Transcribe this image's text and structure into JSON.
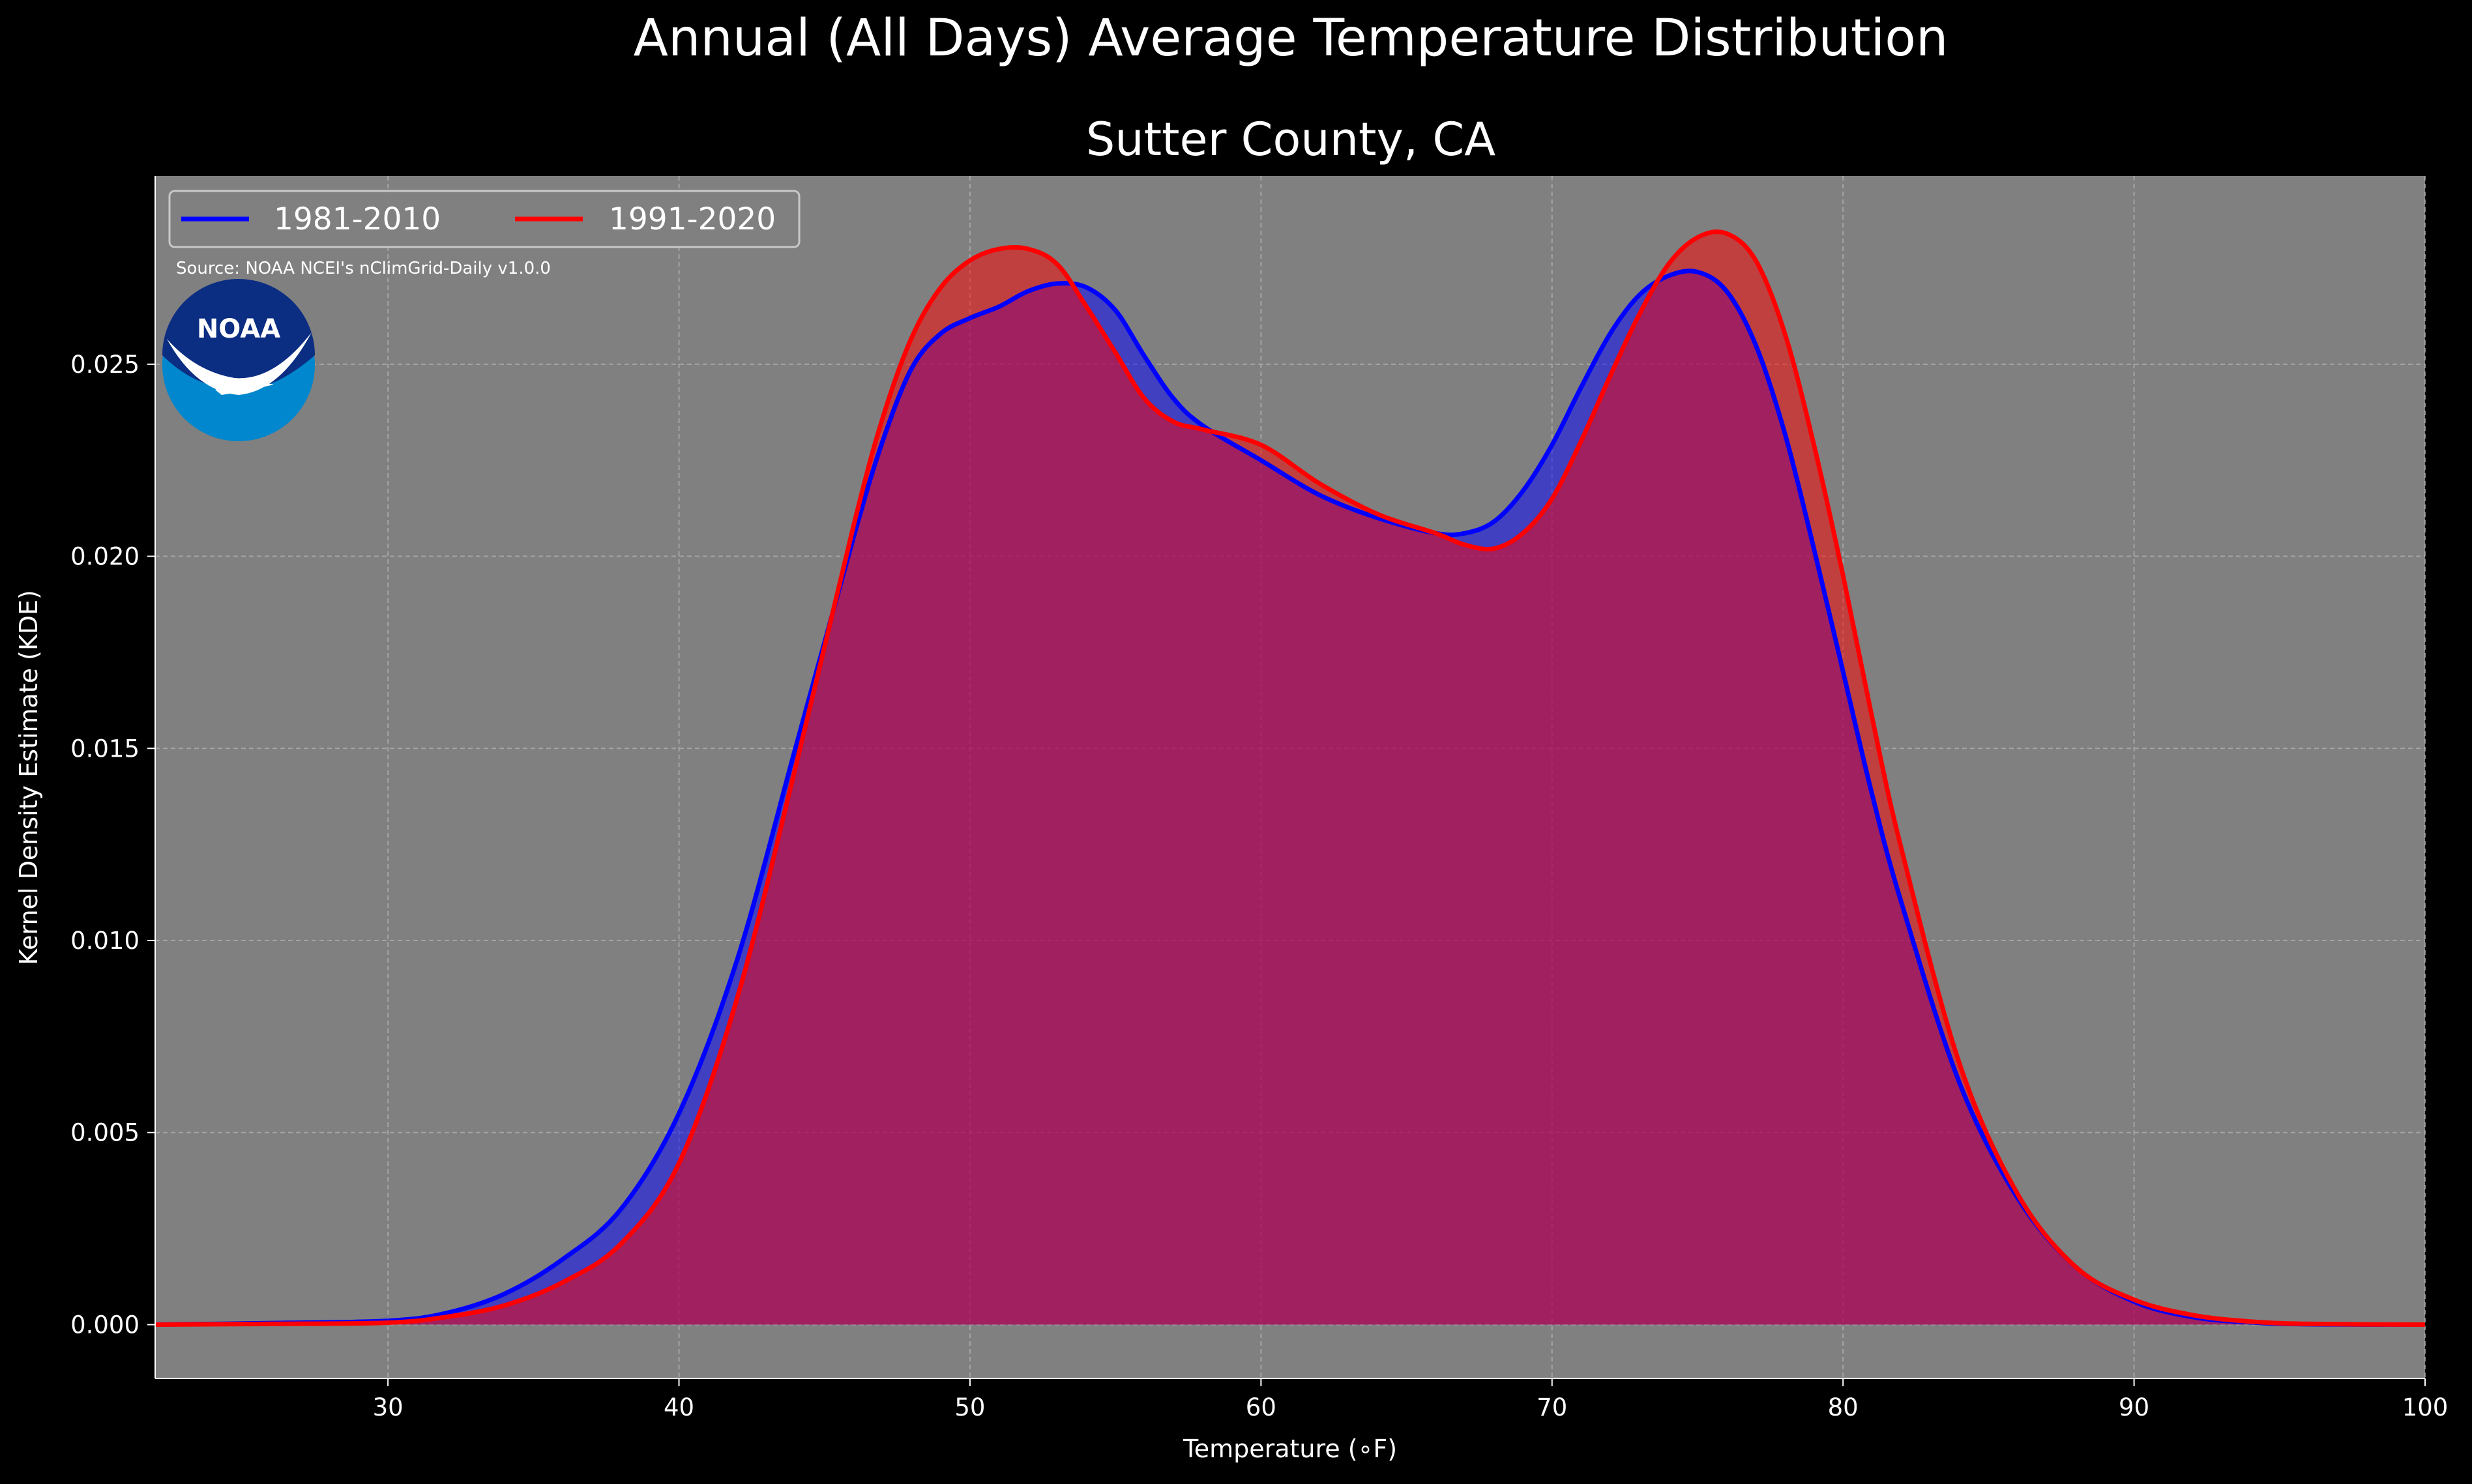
{
  "chart_data": {
    "type": "area",
    "title": "Annual (All Days) Average Temperature Distribution",
    "subtitle": "Sutter County, CA",
    "xlabel": "Temperature ($^\\circ$F)",
    "xlabel_display": "Temperature (∘F)",
    "ylabel": "Kernel Density Estimate (KDE)",
    "source": "Source: NOAA NCEI's nClimGrid-Daily v1.0.0",
    "logo_text": "NOAA",
    "xlim": [
      22,
      100
    ],
    "ylim": [
      -0.0014,
      0.0299
    ],
    "xticks": [
      30,
      40,
      50,
      60,
      70,
      80,
      90,
      100
    ],
    "yticks": [
      0.0,
      0.005,
      0.01,
      0.015,
      0.02,
      0.025
    ],
    "ytick_labels": [
      "0.000",
      "0.005",
      "0.010",
      "0.015",
      "0.020",
      "0.025"
    ],
    "grid": true,
    "legend_position": "top-left",
    "background_color": "#000000",
    "plot_background": "#808080",
    "series": [
      {
        "name": "1981-2010",
        "color": "#0000ff",
        "x": [
          22,
          26,
          30,
          32,
          34,
          36,
          38,
          40,
          42,
          44,
          46,
          47,
          48,
          49,
          50,
          51,
          52,
          53,
          54,
          55,
          56,
          57,
          58,
          60,
          62,
          64,
          66,
          67,
          68,
          69,
          70,
          71,
          72,
          73,
          74,
          75,
          76,
          77,
          78,
          79,
          80,
          81,
          82,
          84,
          86,
          88,
          90,
          92,
          94,
          96,
          100
        ],
        "y": [
          0.0,
          4e-05,
          0.0001,
          0.0003,
          0.0008,
          0.0017,
          0.003,
          0.0055,
          0.0095,
          0.015,
          0.0205,
          0.023,
          0.0249,
          0.0258,
          0.0262,
          0.0265,
          0.0269,
          0.0271,
          0.027,
          0.0264,
          0.0252,
          0.0241,
          0.0234,
          0.0225,
          0.0216,
          0.021,
          0.0206,
          0.0206,
          0.0209,
          0.0217,
          0.0229,
          0.0244,
          0.0258,
          0.0268,
          0.0273,
          0.0274,
          0.0269,
          0.0255,
          0.0232,
          0.0202,
          0.017,
          0.0138,
          0.011,
          0.0063,
          0.0033,
          0.0015,
          0.0006,
          0.0002,
          6e-05,
          1e-05,
          0.0
        ]
      },
      {
        "name": "1991-2020",
        "color": "#ff0000",
        "x": [
          22,
          26,
          30,
          32,
          34,
          36,
          38,
          40,
          42,
          44,
          46,
          47,
          48,
          49,
          50,
          51,
          52,
          53,
          54,
          55,
          56,
          57,
          58,
          60,
          62,
          64,
          66,
          67,
          68,
          69,
          70,
          71,
          72,
          73,
          74,
          75,
          76,
          77,
          78,
          79,
          80,
          81,
          82,
          84,
          86,
          88,
          90,
          92,
          94,
          96,
          100
        ],
        "y": [
          0.0,
          2e-05,
          5e-05,
          0.0002,
          0.0005,
          0.0011,
          0.0021,
          0.0042,
          0.0085,
          0.0145,
          0.0208,
          0.0236,
          0.0257,
          0.027,
          0.0277,
          0.028,
          0.028,
          0.0276,
          0.0265,
          0.0253,
          0.0241,
          0.0235,
          0.0233,
          0.0229,
          0.0219,
          0.0211,
          0.0206,
          0.0203,
          0.0202,
          0.0206,
          0.0215,
          0.023,
          0.0247,
          0.0263,
          0.0276,
          0.0283,
          0.0284,
          0.0277,
          0.0258,
          0.0229,
          0.0195,
          0.0158,
          0.0124,
          0.0068,
          0.0034,
          0.0015,
          0.00065,
          0.00025,
          8e-05,
          2e-05,
          0.0
        ]
      }
    ]
  }
}
